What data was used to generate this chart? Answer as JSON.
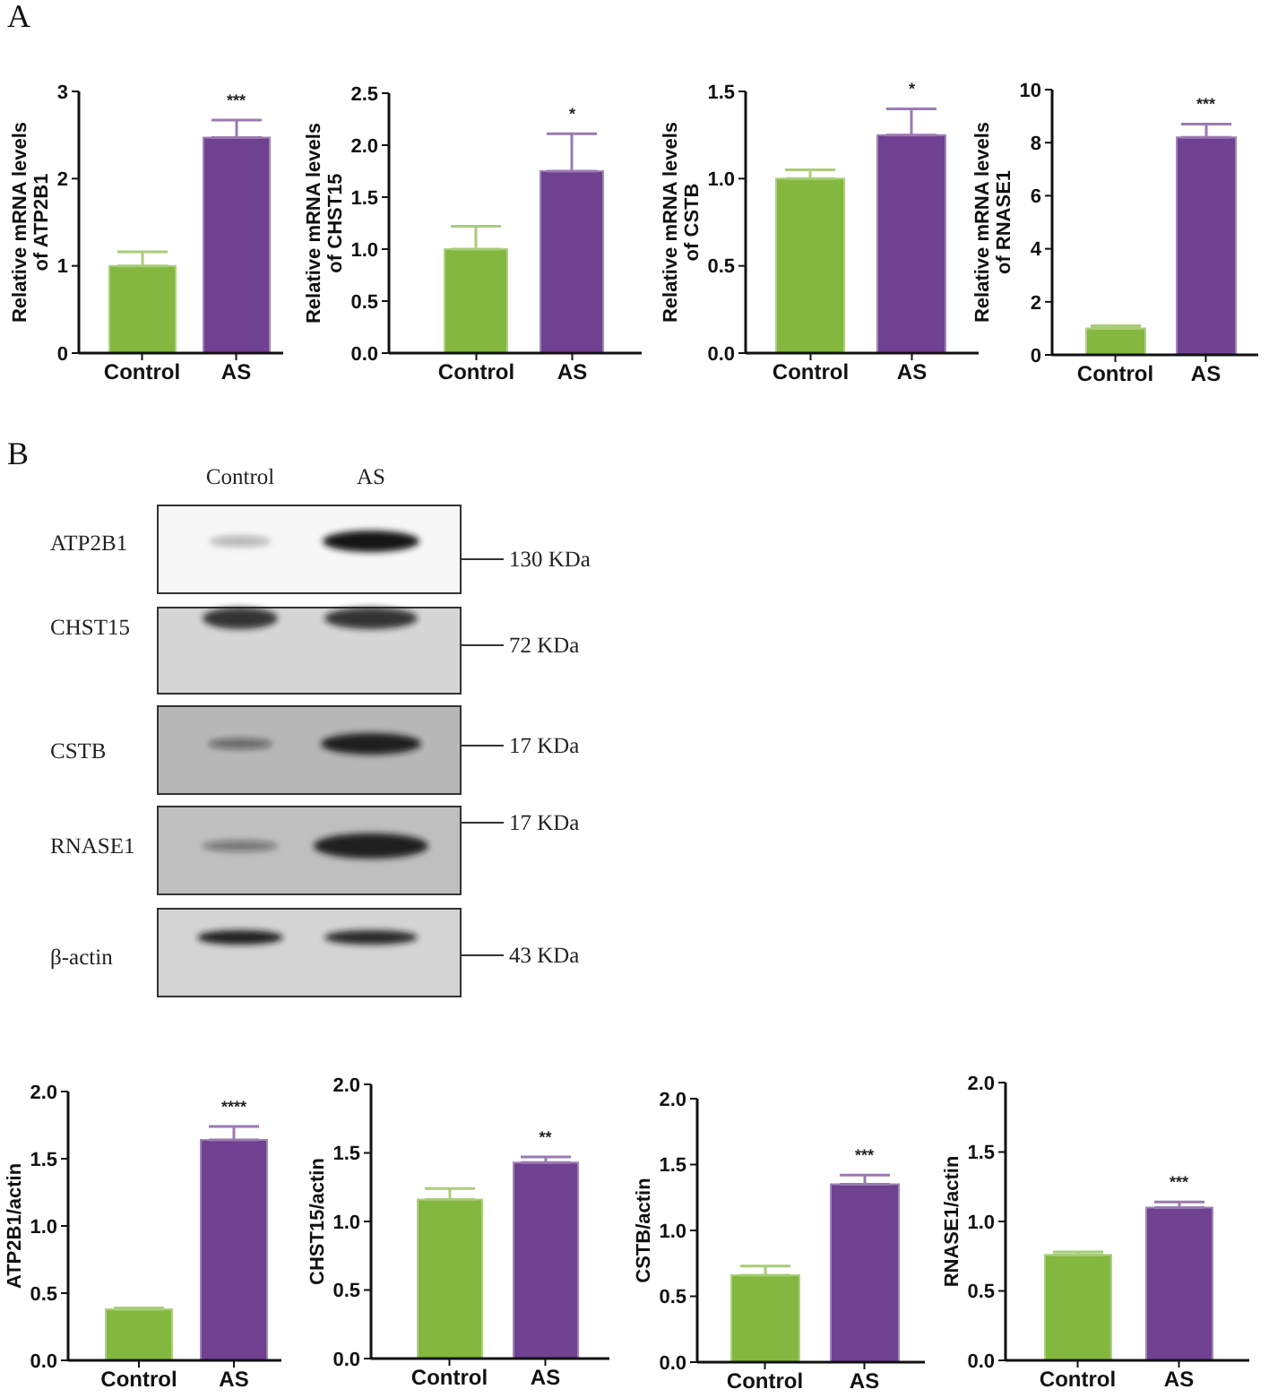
{
  "chart_data": [
    {
      "type": "bar",
      "ylabel": "Relative mRNA levels of ATP2B1",
      "categories": [
        "Control",
        "AS"
      ],
      "values": [
        1.0,
        2.47
      ],
      "colors": [
        "#83b740",
        "#6f4190"
      ],
      "errors": [
        [
          1.0,
          1.16
        ],
        [
          2.47,
          2.67
        ]
      ],
      "ylim": [
        0,
        3
      ],
      "yticks": [
        0,
        1,
        2,
        3
      ],
      "annotations": [
        "A",
        {
          "text": "***",
          "x": "AS",
          "y": 2.67
        }
      ]
    },
    {
      "type": "bar",
      "ylabel": "Relative mRNA levels of CHST15",
      "categories": [
        "Control",
        "AS"
      ],
      "values": [
        1.0,
        1.75
      ],
      "colors": [
        "#83b740",
        "#6f4190"
      ],
      "errors": [
        [
          1.0,
          1.22
        ],
        [
          1.75,
          2.11
        ]
      ],
      "ylim": [
        0,
        2.5
      ],
      "yticks": [
        {
          "value": 0,
          "label": "0.0"
        },
        0.5,
        {
          "value": 1,
          "label": "1.0"
        },
        1.5,
        {
          "value": 2,
          "label": "2.0"
        },
        2.5
      ],
      "annotations": [
        {
          "text": "*",
          "x": "AS",
          "y": 2.11
        }
      ]
    },
    {
      "type": "bar",
      "ylabel": "Relative mRNA levels of CSTB",
      "categories": [
        "Control",
        "AS"
      ],
      "values": [
        1.0,
        1.25
      ],
      "colors": [
        "#83b740",
        "#6f4190"
      ],
      "errors": [
        [
          1.0,
          1.05
        ],
        [
          1.25,
          1.4
        ]
      ],
      "ylim": [
        0,
        1.5
      ],
      "yticks": [
        {
          "value": 0,
          "label": "0.0"
        },
        0.5,
        {
          "value": 1,
          "label": "1.0"
        },
        1.5
      ],
      "annotations": [
        {
          "text": "*",
          "x": "AS",
          "y": 1.4
        }
      ]
    },
    {
      "type": "bar",
      "ylabel": "Relative mRNA levels of RNASE1",
      "categories": [
        "Control",
        "AS"
      ],
      "values": [
        1.0,
        8.2
      ],
      "colors": [
        "#83b740",
        "#6f4190"
      ],
      "errors": [
        [
          1.0,
          1.1
        ],
        [
          8.2,
          8.7
        ]
      ],
      "ylim": [
        0,
        10
      ],
      "yticks": [
        0,
        2,
        4,
        6,
        8,
        10
      ],
      "annotations": [
        {
          "text": "***",
          "x": "AS",
          "y": 8.7
        }
      ]
    },
    {
      "type": "other",
      "categories": [
        "Control",
        "AS"
      ],
      "annotations": [
        "B",
        "ATP2B1",
        "CHST15",
        "CSTB",
        "RNASE1",
        "β-actin",
        "130 KDa",
        "72 KDa",
        "17 KDa",
        "17 KDa",
        "43 KDa"
      ]
    },
    {
      "type": "bar",
      "ylabel": "ATP2B1/actin",
      "categories": [
        "Control",
        "AS"
      ],
      "values": [
        0.38,
        1.64
      ],
      "colors": [
        "#83b740",
        "#6f4190"
      ],
      "errors": [
        [
          0.38,
          0.39
        ],
        [
          1.64,
          1.74
        ]
      ],
      "ylim": [
        0,
        2
      ],
      "yticks": [
        {
          "value": 0,
          "label": "0.0"
        },
        0.5,
        {
          "value": 1,
          "label": "1.0"
        },
        1.5,
        {
          "value": 2,
          "label": "2.0"
        }
      ],
      "annotations": [
        {
          "text": "****",
          "x": "AS",
          "y": 1.74
        }
      ]
    },
    {
      "type": "bar",
      "ylabel": "CHST15/actin",
      "categories": [
        "Control",
        "AS"
      ],
      "values": [
        1.16,
        1.43
      ],
      "colors": [
        "#83b740",
        "#6f4190"
      ],
      "errors": [
        [
          1.16,
          1.24
        ],
        [
          1.43,
          1.47
        ]
      ],
      "ylim": [
        0,
        2
      ],
      "yticks": [
        {
          "value": 0,
          "label": "0.0"
        },
        0.5,
        {
          "value": 1,
          "label": "1.0"
        },
        1.5,
        {
          "value": 2,
          "label": "2.0"
        }
      ],
      "annotations": [
        {
          "text": "**",
          "x": "AS",
          "y": 1.47
        }
      ]
    },
    {
      "type": "bar",
      "ylabel": "CSTB/actin",
      "categories": [
        "Control",
        "AS"
      ],
      "values": [
        0.66,
        1.35
      ],
      "colors": [
        "#83b740",
        "#6f4190"
      ],
      "errors": [
        [
          0.66,
          0.73
        ],
        [
          1.35,
          1.42
        ]
      ],
      "ylim": [
        0,
        2
      ],
      "yticks": [
        {
          "value": 0,
          "label": "0.0"
        },
        0.5,
        {
          "value": 1,
          "label": "1.0"
        },
        1.5,
        {
          "value": 2,
          "label": "2.0"
        }
      ],
      "annotations": [
        {
          "text": "***",
          "x": "AS",
          "y": 1.42
        }
      ]
    },
    {
      "type": "bar",
      "ylabel": "RNASE1/actin",
      "categories": [
        "Control",
        "AS"
      ],
      "values": [
        0.76,
        1.1
      ],
      "colors": [
        "#83b740",
        "#6f4190"
      ],
      "errors": [
        [
          0.76,
          0.78
        ],
        [
          1.1,
          1.14
        ]
      ],
      "ylim": [
        0,
        2
      ],
      "yticks": [
        {
          "value": 0,
          "label": "0.0"
        },
        0.5,
        {
          "value": 1,
          "label": "1.0"
        },
        1.5,
        {
          "value": 2,
          "label": "2.0"
        }
      ],
      "annotations": [
        {
          "text": "***",
          "x": "AS",
          "y": 1.14
        }
      ]
    }
  ]
}
